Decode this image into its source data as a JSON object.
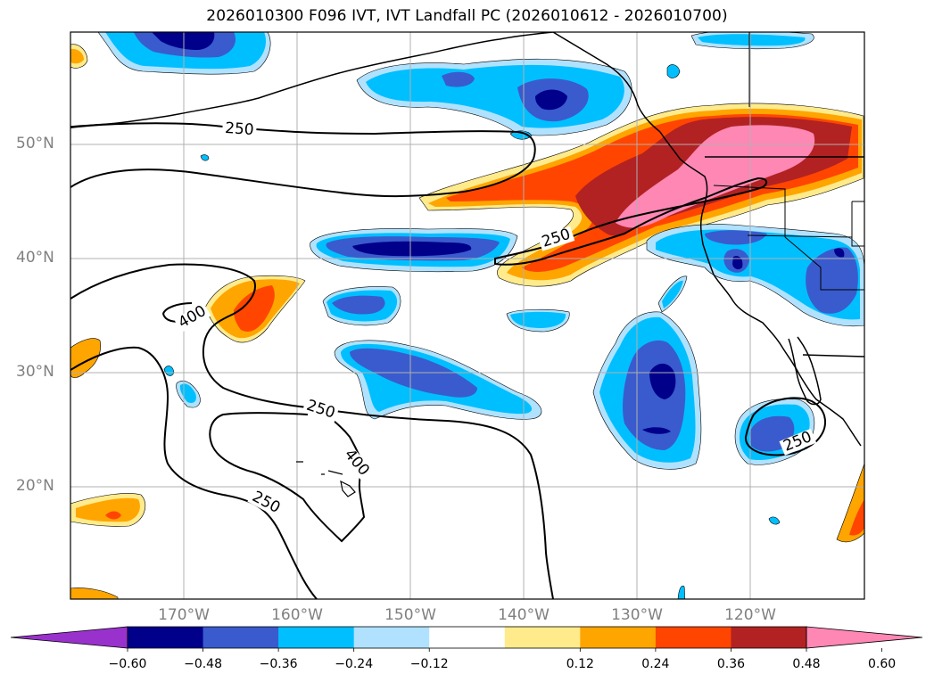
{
  "title": "2026010300 F096 IVT, IVT Landfall PC (2026010612 - 2026010700)",
  "map": {
    "lat_labels": [
      "50°N",
      "40°N",
      "30°N",
      "20°N"
    ],
    "lon_labels": [
      "170°W",
      "160°W",
      "150°W",
      "140°W",
      "130°W",
      "120°W"
    ],
    "contour_labels": [
      "250",
      "250",
      "400",
      "250",
      "400",
      "250",
      "250"
    ]
  },
  "colorbar": {
    "tick_labels": [
      "−0.60",
      "−0.48",
      "−0.36",
      "−0.24",
      "−0.12",
      "0.12",
      "0.24",
      "0.36",
      "0.48",
      "0.60"
    ],
    "colors": [
      "#9932cc",
      "#00008b",
      "#3a5bcd",
      "#00bfff",
      "#b0e2ff",
      "#ffffff",
      "#ffeb8c",
      "#ffa500",
      "#ff4500",
      "#b22222",
      "#ff87b4"
    ],
    "extend": "both"
  }
}
